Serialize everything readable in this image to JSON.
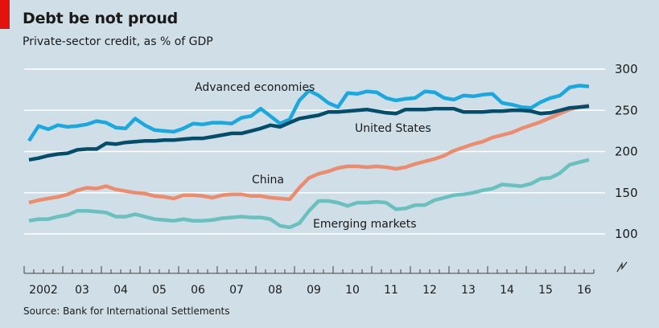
{
  "header": {
    "title": "Debt be not proud",
    "subtitle": "Private-sector credit, as % of GDP"
  },
  "footer": {
    "source": "Source: Bank for International Settlements"
  },
  "colors": {
    "accent": "#e3120b",
    "background": "#cfdee7",
    "advanced": "#1ba8df",
    "us": "#034d6a",
    "china": "#ec8c6f",
    "emerging": "#6abfbf"
  },
  "chart_data": {
    "type": "line",
    "title": "Debt be not proud",
    "subtitle": "Private-sector credit, as % of GDP",
    "xlabel": "",
    "ylabel": "",
    "ylim": [
      100,
      300
    ],
    "yticks": [
      100,
      150,
      200,
      250,
      300
    ],
    "ytick_labels": [
      "100",
      "150",
      "200",
      "250",
      "300"
    ],
    "axis_break": true,
    "grid": true,
    "x_start": 2002.0,
    "x_step": 0.25,
    "xlim": [
      2002,
      2016.75
    ],
    "xticks": [
      2002,
      2003,
      2004,
      2005,
      2006,
      2007,
      2008,
      2009,
      2010,
      2011,
      2012,
      2013,
      2014,
      2015,
      2016
    ],
    "xtick_labels": [
      "2002",
      "03",
      "04",
      "05",
      "06",
      "07",
      "08",
      "09",
      "10",
      "11",
      "12",
      "13",
      "14",
      "15",
      "16"
    ],
    "legend": "inline-labels",
    "series": [
      {
        "name": "Advanced economies",
        "color": "#1ba8df",
        "values": [
          213,
          231,
          227,
          232,
          230,
          231,
          233,
          237,
          235,
          229,
          228,
          240,
          232,
          226,
          225,
          224,
          228,
          234,
          233,
          235,
          235,
          234,
          241,
          243,
          252,
          243,
          234,
          239,
          262,
          274,
          268,
          259,
          254,
          271,
          270,
          273,
          272,
          265,
          262,
          264,
          265,
          273,
          272,
          265,
          263,
          268,
          267,
          269,
          270,
          259,
          257,
          254,
          253,
          260,
          265,
          268,
          278,
          280,
          279
        ]
      },
      {
        "name": "United States",
        "color": "#034d6a",
        "values": [
          190,
          192,
          195,
          197,
          198,
          202,
          203,
          203,
          210,
          209,
          211,
          212,
          213,
          213,
          214,
          214,
          215,
          216,
          216,
          218,
          220,
          222,
          222,
          225,
          228,
          232,
          230,
          235,
          240,
          242,
          244,
          248,
          248,
          249,
          250,
          251,
          249,
          247,
          246,
          251,
          251,
          251,
          252,
          252,
          252,
          248,
          248,
          248,
          249,
          249,
          250,
          250,
          249,
          246,
          247,
          250,
          253,
          254,
          255
        ]
      },
      {
        "name": "China",
        "color": "#ec8c6f",
        "values": [
          138,
          141,
          143,
          145,
          148,
          153,
          156,
          155,
          158,
          154,
          152,
          150,
          149,
          146,
          145,
          143,
          147,
          147,
          146,
          144,
          147,
          148,
          148,
          146,
          146,
          144,
          143,
          142,
          156,
          168,
          173,
          176,
          180,
          182,
          182,
          181,
          182,
          181,
          179,
          181,
          185,
          188,
          191,
          195,
          201,
          205,
          209,
          212,
          217,
          220,
          223,
          228,
          232,
          236,
          241,
          246,
          251,
          254,
          256
        ]
      },
      {
        "name": "Emerging markets",
        "color": "#6abfbf",
        "values": [
          116,
          118,
          118,
          121,
          123,
          128,
          128,
          127,
          126,
          121,
          121,
          124,
          121,
          118,
          117,
          116,
          118,
          116,
          116,
          117,
          119,
          120,
          121,
          120,
          120,
          118,
          110,
          108,
          113,
          128,
          140,
          140,
          138,
          134,
          138,
          138,
          139,
          138,
          130,
          131,
          135,
          135,
          141,
          144,
          147,
          148,
          150,
          153,
          155,
          160,
          159,
          158,
          161,
          167,
          168,
          174,
          184,
          187,
          190
        ]
      }
    ],
    "annotations": [
      {
        "text": "Advanced economies",
        "series": "Advanced economies"
      },
      {
        "text": "United States",
        "series": "United States"
      },
      {
        "text": "China",
        "series": "China"
      },
      {
        "text": "Emerging markets",
        "series": "Emerging markets"
      }
    ]
  }
}
